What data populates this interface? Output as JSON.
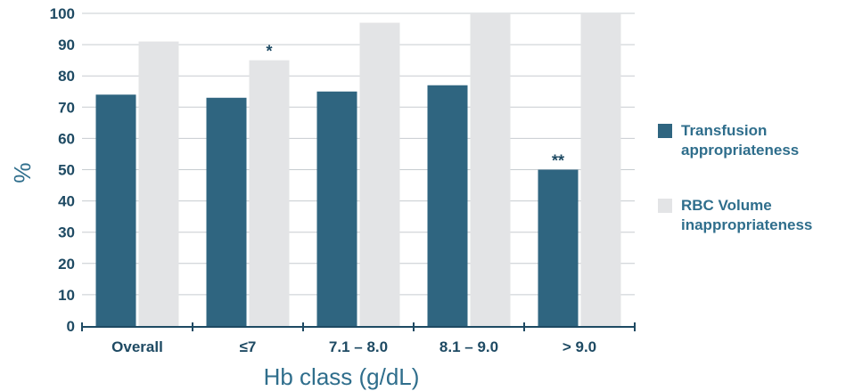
{
  "chart_data": {
    "type": "bar",
    "xlabel": "Hb class  (g/dL)",
    "ylabel": "%",
    "ylim": [
      0,
      100
    ],
    "yticks": [
      0,
      10,
      20,
      30,
      40,
      50,
      60,
      70,
      80,
      90,
      100
    ],
    "categories": [
      "Overall",
      "≤7",
      "7.1 – 8.0",
      "8.1 – 9.0",
      "> 9.0"
    ],
    "grid": "horizontal",
    "legend_position": "right",
    "series": [
      {
        "name": "Transfusion appropriateness",
        "legend_lines": [
          "Transfusion",
          "appropriateness"
        ],
        "color": "#2f6580",
        "values": [
          74,
          73,
          75,
          77,
          50
        ],
        "annotations": [
          "",
          "",
          "",
          "",
          "**"
        ]
      },
      {
        "name": "RBC Volume inappropriateness",
        "legend_lines": [
          "RBC Volume",
          "inappropriateness"
        ],
        "color": "#e3e4e6",
        "values": [
          91,
          85,
          97,
          100,
          100
        ],
        "annotations": [
          "",
          "*",
          "",
          "",
          ""
        ]
      }
    ]
  }
}
